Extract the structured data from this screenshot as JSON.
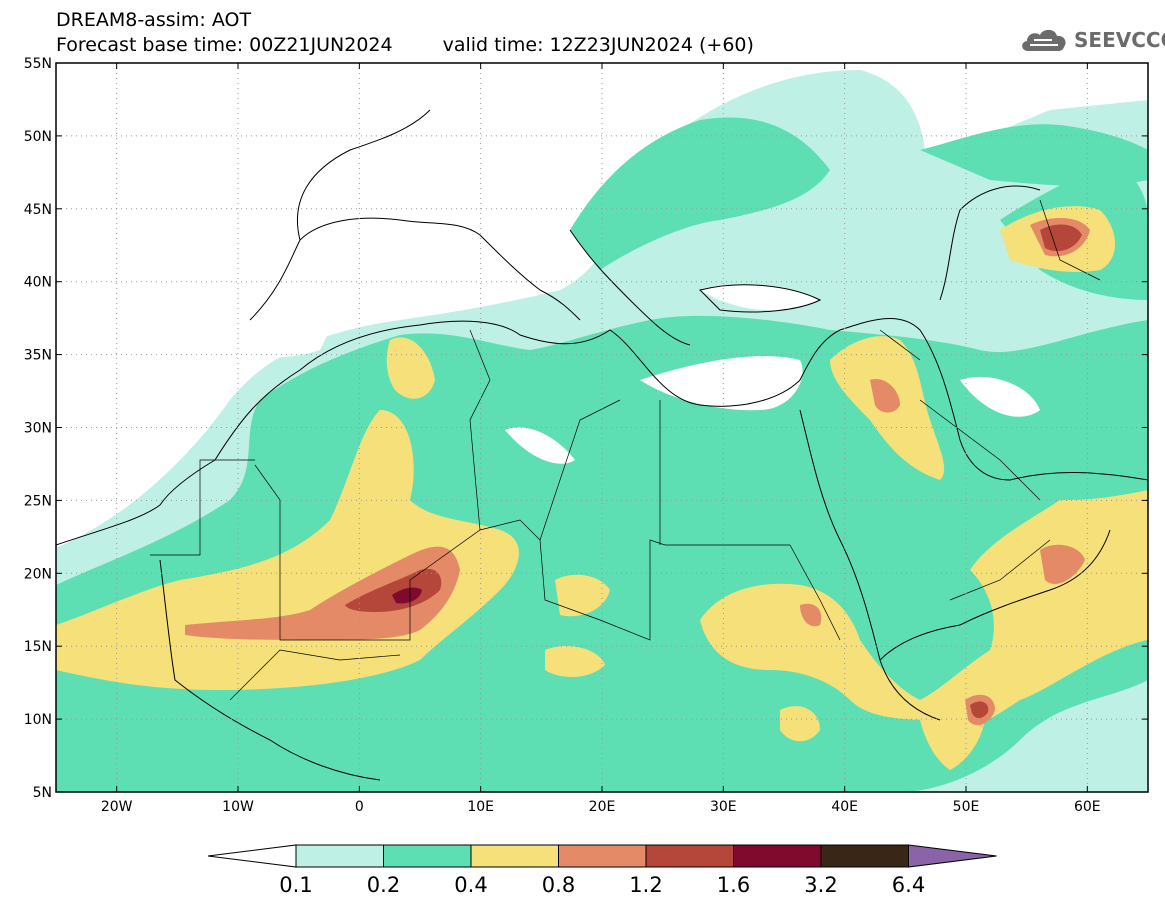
{
  "header": {
    "title": "DREAM8-assim: AOT",
    "base_time": "Forecast base time: 00Z21JUN2024",
    "valid_time": "valid time: 12Z23JUN2024 (+60)"
  },
  "logo": {
    "text": "SEEVCCC",
    "icon": "cloud-icon",
    "color": "#6b6b6b"
  },
  "map": {
    "lon_range": [
      -25,
      65
    ],
    "lat_range": [
      5,
      55
    ],
    "lat_ticks": [
      {
        "value": 55,
        "label": "55N"
      },
      {
        "value": 50,
        "label": "50N"
      },
      {
        "value": 45,
        "label": "45N"
      },
      {
        "value": 40,
        "label": "40N"
      },
      {
        "value": 35,
        "label": "35N"
      },
      {
        "value": 30,
        "label": "30N"
      },
      {
        "value": 25,
        "label": "25N"
      },
      {
        "value": 20,
        "label": "20N"
      },
      {
        "value": 15,
        "label": "15N"
      },
      {
        "value": 10,
        "label": "10N"
      },
      {
        "value": 5,
        "label": "5N"
      }
    ],
    "lon_ticks": [
      {
        "value": -20,
        "label": "20W"
      },
      {
        "value": -10,
        "label": "10W"
      },
      {
        "value": 0,
        "label": "0"
      },
      {
        "value": 10,
        "label": "10E"
      },
      {
        "value": 20,
        "label": "20E"
      },
      {
        "value": 30,
        "label": "30E"
      },
      {
        "value": 40,
        "label": "40E"
      },
      {
        "value": 50,
        "label": "50E"
      },
      {
        "value": 60,
        "label": "60E"
      }
    ],
    "grid": "dotted"
  },
  "colorbar": {
    "levels": [
      "0.1",
      "0.2",
      "0.4",
      "0.8",
      "1.2",
      "1.6",
      "3.2",
      "6.4"
    ],
    "colors": [
      "#ffffff",
      "#bff0e6",
      "#5ddfb3",
      "#f5e07a",
      "#e48a66",
      "#b4463a",
      "#800a2d",
      "#3a2616",
      "#8a63a8"
    ]
  }
}
